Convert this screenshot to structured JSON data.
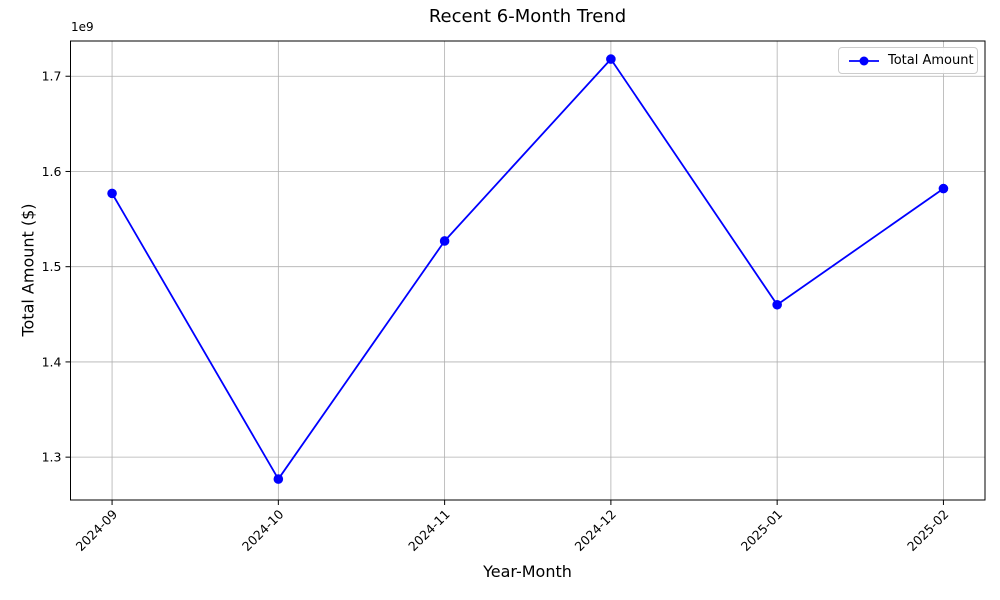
{
  "chart_data": {
    "type": "line",
    "title": "Recent 6-Month Trend",
    "xlabel": "Year-Month",
    "ylabel": "Total Amount ($)",
    "offset_text": "1e9",
    "categories": [
      "2024-09",
      "2024-10",
      "2024-11",
      "2024-12",
      "2025-01",
      "2025-02"
    ],
    "series": [
      {
        "name": "Total Amount",
        "color": "#0000ff",
        "marker": "circle",
        "values": [
          1577000000,
          1277000000,
          1527000000,
          1718000000,
          1460000000,
          1582000000
        ]
      }
    ],
    "y_ticks": [
      1300000000,
      1400000000,
      1500000000,
      1600000000,
      1700000000
    ],
    "y_tick_labels": [
      "1.3",
      "1.4",
      "1.5",
      "1.6",
      "1.7"
    ],
    "ylim": [
      1255000000,
      1737000000
    ],
    "x_tick_rotation": 45,
    "grid": true,
    "legend_position": "upper right"
  },
  "legend": {
    "label": "Total Amount",
    "line_color": "#0000ff"
  },
  "colors": {
    "line": "#0000ff",
    "grid": "#b0b0b0",
    "axis": "#000000",
    "background": "#ffffff"
  }
}
